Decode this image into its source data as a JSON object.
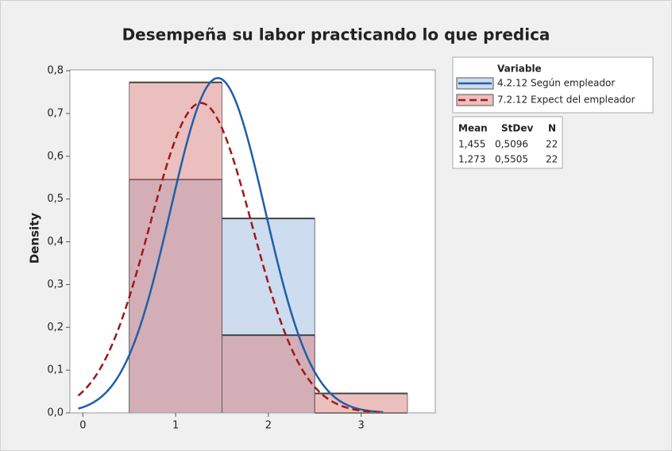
{
  "chart_data": {
    "type": "histogram",
    "title": "Desempeña su labor practicando lo que predica",
    "ylabel": "Density",
    "legend_title": "Variable",
    "stats_headers": [
      "Mean",
      "StDev",
      "N"
    ],
    "bins": [
      0.5,
      1.5,
      2.5,
      3.5
    ],
    "series": [
      {
        "name": "4.2.12 Según empleador",
        "color": "#1f5fa8",
        "fill": "#cddcef",
        "values": [
          0.5455,
          0.4545,
          0
        ],
        "mean": {
          "value": 1.455,
          "label": "1,455"
        },
        "stdev": {
          "value": 0.5096,
          "label": "0,5096"
        },
        "n": 22
      },
      {
        "name": "7.2.12 Expect del empleador",
        "color": "#a01818",
        "fill": "#d98080",
        "values": [
          0.7727,
          0.1818,
          0.04545
        ],
        "mean": {
          "value": 1.273,
          "label": "1,273"
        },
        "stdev": {
          "value": 0.5505,
          "label": "0,5505"
        },
        "n": 22
      }
    ],
    "xlim": [
      -0.14,
      3.8
    ],
    "ylim": [
      0,
      0.802
    ],
    "xticks": [
      0,
      1,
      2,
      3
    ],
    "yticks": [
      {
        "value": 0,
        "label": "0,0"
      },
      {
        "value": 0.1,
        "label": "0,1"
      },
      {
        "value": 0.2,
        "label": "0,2"
      },
      {
        "value": 0.3,
        "label": "0,3"
      },
      {
        "value": 0.4,
        "label": "0,4"
      },
      {
        "value": 0.5,
        "label": "0,5"
      },
      {
        "value": 0.6,
        "label": "0,6"
      },
      {
        "value": 0.7,
        "label": "0,7"
      },
      {
        "value": 0.8,
        "label": "0,8"
      }
    ]
  }
}
